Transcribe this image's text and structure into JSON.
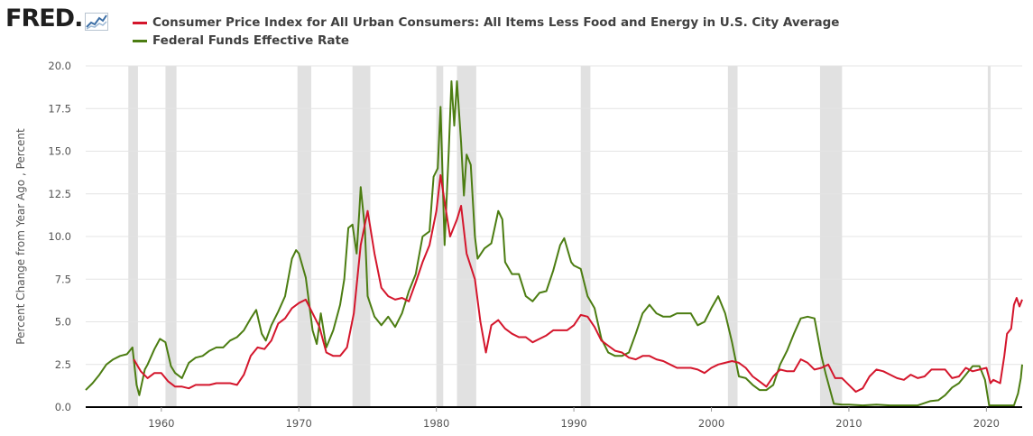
{
  "brand": {
    "name": "FRED",
    "dot": "."
  },
  "chart_data": {
    "type": "line",
    "title": "",
    "xlabel": "",
    "ylabel": "Percent Change from Year Ago , Percent",
    "xlim": [
      1954.5,
      2022.6
    ],
    "ylim": [
      0,
      20
    ],
    "xticks": [
      1960,
      1970,
      1980,
      1990,
      2000,
      2010,
      2020
    ],
    "xtick_labels": [
      "1960",
      "1970",
      "1980",
      "1990",
      "2000",
      "2010",
      "2020"
    ],
    "yticks": [
      0,
      2.5,
      5,
      7.5,
      10,
      12.5,
      15,
      17.5,
      20
    ],
    "ytick_labels": [
      "0.0",
      "2.5",
      "5.0",
      "7.5",
      "10.0",
      "12.5",
      "15.0",
      "17.5",
      "20.0"
    ],
    "grid": "horizontal",
    "legend_position": "top-left",
    "recessions": [
      [
        1957.6,
        1958.3
      ],
      [
        1960.3,
        1961.1
      ],
      [
        1969.9,
        1970.9
      ],
      [
        1973.9,
        1975.2
      ],
      [
        1980.0,
        1980.5
      ],
      [
        1981.5,
        1982.9
      ],
      [
        1990.5,
        1991.2
      ],
      [
        2001.2,
        2001.9
      ],
      [
        2007.9,
        2009.5
      ],
      [
        2020.1,
        2020.3
      ]
    ],
    "series": [
      {
        "name": "Consumer Price Index for All Urban Consumers: All Items Less Food and Energy in U.S. City Average",
        "color": "#d4162c",
        "points": [
          [
            1958.0,
            2.8
          ],
          [
            1958.5,
            2.1
          ],
          [
            1959.0,
            1.7
          ],
          [
            1959.5,
            2.0
          ],
          [
            1960.0,
            2.0
          ],
          [
            1960.5,
            1.5
          ],
          [
            1961.0,
            1.2
          ],
          [
            1961.5,
            1.2
          ],
          [
            1962.0,
            1.1
          ],
          [
            1962.5,
            1.3
          ],
          [
            1963.0,
            1.3
          ],
          [
            1963.5,
            1.3
          ],
          [
            1964.0,
            1.4
          ],
          [
            1964.5,
            1.4
          ],
          [
            1965.0,
            1.4
          ],
          [
            1965.5,
            1.3
          ],
          [
            1966.0,
            1.9
          ],
          [
            1966.5,
            3.0
          ],
          [
            1967.0,
            3.5
          ],
          [
            1967.5,
            3.4
          ],
          [
            1968.0,
            3.9
          ],
          [
            1968.5,
            4.9
          ],
          [
            1969.0,
            5.2
          ],
          [
            1969.5,
            5.8
          ],
          [
            1970.0,
            6.1
          ],
          [
            1970.5,
            6.3
          ],
          [
            1971.0,
            5.5
          ],
          [
            1971.5,
            4.7
          ],
          [
            1972.0,
            3.2
          ],
          [
            1972.5,
            3.0
          ],
          [
            1973.0,
            3.0
          ],
          [
            1973.5,
            3.5
          ],
          [
            1974.0,
            5.5
          ],
          [
            1974.5,
            9.5
          ],
          [
            1975.0,
            11.5
          ],
          [
            1975.5,
            9.0
          ],
          [
            1976.0,
            7.0
          ],
          [
            1976.5,
            6.5
          ],
          [
            1977.0,
            6.3
          ],
          [
            1977.5,
            6.4
          ],
          [
            1978.0,
            6.2
          ],
          [
            1978.5,
            7.3
          ],
          [
            1979.0,
            8.5
          ],
          [
            1979.5,
            9.5
          ],
          [
            1980.0,
            11.5
          ],
          [
            1980.3,
            13.6
          ],
          [
            1980.8,
            11.0
          ],
          [
            1981.0,
            10.0
          ],
          [
            1981.5,
            11.0
          ],
          [
            1981.8,
            11.8
          ],
          [
            1982.2,
            9.0
          ],
          [
            1982.8,
            7.5
          ],
          [
            1983.2,
            5.0
          ],
          [
            1983.6,
            3.2
          ],
          [
            1984.0,
            4.8
          ],
          [
            1984.5,
            5.1
          ],
          [
            1985.0,
            4.6
          ],
          [
            1985.5,
            4.3
          ],
          [
            1986.0,
            4.1
          ],
          [
            1986.5,
            4.1
          ],
          [
            1987.0,
            3.8
          ],
          [
            1987.5,
            4.0
          ],
          [
            1988.0,
            4.2
          ],
          [
            1988.5,
            4.5
          ],
          [
            1989.0,
            4.5
          ],
          [
            1989.5,
            4.5
          ],
          [
            1990.0,
            4.8
          ],
          [
            1990.5,
            5.4
          ],
          [
            1991.0,
            5.3
          ],
          [
            1991.5,
            4.7
          ],
          [
            1992.0,
            3.9
          ],
          [
            1992.5,
            3.6
          ],
          [
            1993.0,
            3.3
          ],
          [
            1993.5,
            3.2
          ],
          [
            1994.0,
            2.9
          ],
          [
            1994.5,
            2.8
          ],
          [
            1995.0,
            3.0
          ],
          [
            1995.5,
            3.0
          ],
          [
            1996.0,
            2.8
          ],
          [
            1996.5,
            2.7
          ],
          [
            1997.0,
            2.5
          ],
          [
            1997.5,
            2.3
          ],
          [
            1998.0,
            2.3
          ],
          [
            1998.5,
            2.3
          ],
          [
            1999.0,
            2.2
          ],
          [
            1999.5,
            2.0
          ],
          [
            2000.0,
            2.3
          ],
          [
            2000.5,
            2.5
          ],
          [
            2001.0,
            2.6
          ],
          [
            2001.5,
            2.7
          ],
          [
            2002.0,
            2.6
          ],
          [
            2002.5,
            2.3
          ],
          [
            2003.0,
            1.8
          ],
          [
            2003.5,
            1.5
          ],
          [
            2004.0,
            1.2
          ],
          [
            2004.5,
            1.8
          ],
          [
            2005.0,
            2.2
          ],
          [
            2005.5,
            2.1
          ],
          [
            2006.0,
            2.1
          ],
          [
            2006.5,
            2.8
          ],
          [
            2007.0,
            2.6
          ],
          [
            2007.5,
            2.2
          ],
          [
            2008.0,
            2.3
          ],
          [
            2008.5,
            2.5
          ],
          [
            2009.0,
            1.7
          ],
          [
            2009.5,
            1.7
          ],
          [
            2010.0,
            1.3
          ],
          [
            2010.5,
            0.9
          ],
          [
            2011.0,
            1.1
          ],
          [
            2011.5,
            1.8
          ],
          [
            2012.0,
            2.2
          ],
          [
            2012.5,
            2.1
          ],
          [
            2013.0,
            1.9
          ],
          [
            2013.5,
            1.7
          ],
          [
            2014.0,
            1.6
          ],
          [
            2014.5,
            1.9
          ],
          [
            2015.0,
            1.7
          ],
          [
            2015.5,
            1.8
          ],
          [
            2016.0,
            2.2
          ],
          [
            2016.5,
            2.2
          ],
          [
            2017.0,
            2.2
          ],
          [
            2017.5,
            1.7
          ],
          [
            2018.0,
            1.8
          ],
          [
            2018.5,
            2.3
          ],
          [
            2019.0,
            2.1
          ],
          [
            2019.5,
            2.2
          ],
          [
            2020.0,
            2.3
          ],
          [
            2020.3,
            1.4
          ],
          [
            2020.5,
            1.6
          ],
          [
            2021.0,
            1.4
          ],
          [
            2021.3,
            3.0
          ],
          [
            2021.5,
            4.3
          ],
          [
            2021.8,
            4.6
          ],
          [
            2022.0,
            6.0
          ],
          [
            2022.2,
            6.4
          ],
          [
            2022.4,
            5.9
          ],
          [
            2022.6,
            6.3
          ]
        ]
      },
      {
        "name": "Federal Funds Effective Rate",
        "color": "#4c7d12",
        "points": [
          [
            1954.5,
            1.0
          ],
          [
            1955.0,
            1.4
          ],
          [
            1955.5,
            1.9
          ],
          [
            1956.0,
            2.5
          ],
          [
            1956.5,
            2.8
          ],
          [
            1957.0,
            3.0
          ],
          [
            1957.5,
            3.1
          ],
          [
            1957.9,
            3.5
          ],
          [
            1958.2,
            1.3
          ],
          [
            1958.4,
            0.7
          ],
          [
            1958.8,
            2.2
          ],
          [
            1959.0,
            2.5
          ],
          [
            1959.5,
            3.4
          ],
          [
            1959.9,
            4.0
          ],
          [
            1960.3,
            3.8
          ],
          [
            1960.7,
            2.4
          ],
          [
            1961.0,
            2.0
          ],
          [
            1961.5,
            1.7
          ],
          [
            1962.0,
            2.6
          ],
          [
            1962.5,
            2.9
          ],
          [
            1963.0,
            3.0
          ],
          [
            1963.5,
            3.3
          ],
          [
            1964.0,
            3.5
          ],
          [
            1964.5,
            3.5
          ],
          [
            1965.0,
            3.9
          ],
          [
            1965.5,
            4.1
          ],
          [
            1966.0,
            4.5
          ],
          [
            1966.5,
            5.2
          ],
          [
            1966.9,
            5.7
          ],
          [
            1967.3,
            4.3
          ],
          [
            1967.6,
            3.9
          ],
          [
            1968.0,
            4.8
          ],
          [
            1968.5,
            5.6
          ],
          [
            1969.0,
            6.5
          ],
          [
            1969.5,
            8.7
          ],
          [
            1969.8,
            9.2
          ],
          [
            1970.0,
            9.0
          ],
          [
            1970.5,
            7.6
          ],
          [
            1971.0,
            4.5
          ],
          [
            1971.3,
            3.7
          ],
          [
            1971.6,
            5.5
          ],
          [
            1972.0,
            3.5
          ],
          [
            1972.5,
            4.5
          ],
          [
            1973.0,
            6.0
          ],
          [
            1973.3,
            7.5
          ],
          [
            1973.6,
            10.5
          ],
          [
            1973.9,
            10.7
          ],
          [
            1974.2,
            9.0
          ],
          [
            1974.4,
            11.5
          ],
          [
            1974.5,
            12.9
          ],
          [
            1974.8,
            10.5
          ],
          [
            1975.0,
            6.5
          ],
          [
            1975.5,
            5.3
          ],
          [
            1976.0,
            4.8
          ],
          [
            1976.5,
            5.3
          ],
          [
            1977.0,
            4.7
          ],
          [
            1977.5,
            5.5
          ],
          [
            1978.0,
            6.8
          ],
          [
            1978.5,
            7.8
          ],
          [
            1979.0,
            10.0
          ],
          [
            1979.5,
            10.3
          ],
          [
            1979.8,
            13.5
          ],
          [
            1980.1,
            14.0
          ],
          [
            1980.3,
            17.6
          ],
          [
            1980.6,
            9.5
          ],
          [
            1980.9,
            15.0
          ],
          [
            1981.1,
            19.1
          ],
          [
            1981.3,
            16.5
          ],
          [
            1981.5,
            19.1
          ],
          [
            1981.8,
            15.5
          ],
          [
            1982.0,
            12.4
          ],
          [
            1982.2,
            14.8
          ],
          [
            1982.5,
            14.2
          ],
          [
            1982.8,
            10.0
          ],
          [
            1983.0,
            8.7
          ],
          [
            1983.5,
            9.3
          ],
          [
            1984.0,
            9.6
          ],
          [
            1984.5,
            11.5
          ],
          [
            1984.8,
            11.0
          ],
          [
            1985.0,
            8.5
          ],
          [
            1985.5,
            7.8
          ],
          [
            1986.0,
            7.8
          ],
          [
            1986.5,
            6.5
          ],
          [
            1987.0,
            6.2
          ],
          [
            1987.5,
            6.7
          ],
          [
            1988.0,
            6.8
          ],
          [
            1988.5,
            8.0
          ],
          [
            1989.0,
            9.5
          ],
          [
            1989.3,
            9.9
          ],
          [
            1989.8,
            8.5
          ],
          [
            1990.0,
            8.3
          ],
          [
            1990.5,
            8.1
          ],
          [
            1991.0,
            6.5
          ],
          [
            1991.5,
            5.8
          ],
          [
            1992.0,
            4.0
          ],
          [
            1992.5,
            3.2
          ],
          [
            1993.0,
            3.0
          ],
          [
            1993.5,
            3.0
          ],
          [
            1994.0,
            3.2
          ],
          [
            1994.5,
            4.3
          ],
          [
            1995.0,
            5.5
          ],
          [
            1995.5,
            6.0
          ],
          [
            1996.0,
            5.5
          ],
          [
            1996.5,
            5.3
          ],
          [
            1997.0,
            5.3
          ],
          [
            1997.5,
            5.5
          ],
          [
            1998.0,
            5.5
          ],
          [
            1998.5,
            5.5
          ],
          [
            1999.0,
            4.8
          ],
          [
            1999.5,
            5.0
          ],
          [
            2000.0,
            5.8
          ],
          [
            2000.5,
            6.5
          ],
          [
            2001.0,
            5.5
          ],
          [
            2001.5,
            3.8
          ],
          [
            2002.0,
            1.8
          ],
          [
            2002.5,
            1.7
          ],
          [
            2003.0,
            1.3
          ],
          [
            2003.5,
            1.0
          ],
          [
            2004.0,
            1.0
          ],
          [
            2004.5,
            1.3
          ],
          [
            2005.0,
            2.5
          ],
          [
            2005.5,
            3.3
          ],
          [
            2006.0,
            4.3
          ],
          [
            2006.5,
            5.2
          ],
          [
            2007.0,
            5.3
          ],
          [
            2007.5,
            5.2
          ],
          [
            2008.0,
            3.0
          ],
          [
            2008.3,
            2.0
          ],
          [
            2008.9,
            0.2
          ],
          [
            2009.5,
            0.15
          ],
          [
            2010.0,
            0.15
          ],
          [
            2011.0,
            0.1
          ],
          [
            2012.0,
            0.15
          ],
          [
            2013.0,
            0.1
          ],
          [
            2014.0,
            0.1
          ],
          [
            2015.0,
            0.1
          ],
          [
            2015.9,
            0.35
          ],
          [
            2016.5,
            0.4
          ],
          [
            2017.0,
            0.7
          ],
          [
            2017.5,
            1.15
          ],
          [
            2018.0,
            1.4
          ],
          [
            2018.5,
            1.9
          ],
          [
            2019.0,
            2.4
          ],
          [
            2019.5,
            2.4
          ],
          [
            2019.9,
            1.6
          ],
          [
            2020.2,
            0.1
          ],
          [
            2021.0,
            0.1
          ],
          [
            2022.0,
            0.1
          ],
          [
            2022.3,
            0.8
          ],
          [
            2022.5,
            1.7
          ],
          [
            2022.6,
            2.5
          ]
        ]
      }
    ]
  }
}
